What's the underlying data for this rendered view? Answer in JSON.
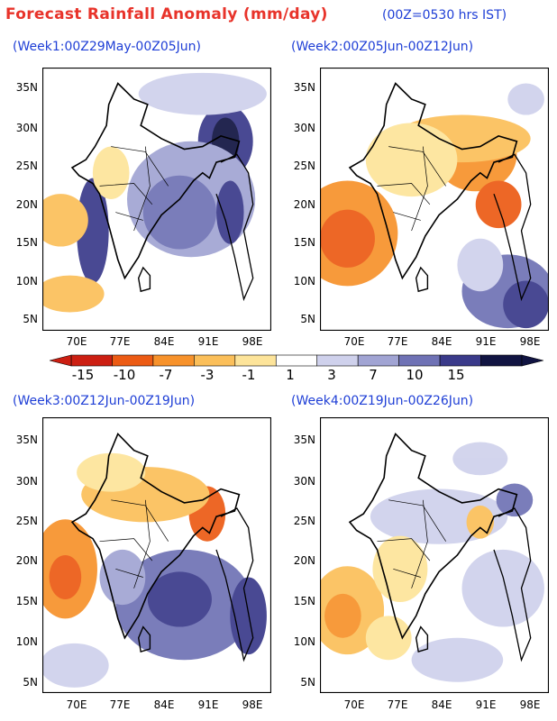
{
  "header": {
    "title": "Forecast Rainfall Anomaly (mm/day)",
    "note": "(00Z=0530 hrs IST)"
  },
  "panels": [
    {
      "title": "(Week1:00Z29May-00Z05Jun)",
      "pattern": "wet"
    },
    {
      "title": "(Week2:00Z05Jun-00Z12Jun)",
      "pattern": "dry"
    },
    {
      "title": "(Week3:00Z12Jun-00Z19Jun)",
      "pattern": "mixed"
    },
    {
      "title": "(Week4:00Z19Jun-00Z26Jun)",
      "pattern": "mild"
    }
  ],
  "axes": {
    "lat_labels": [
      "35N",
      "30N",
      "25N",
      "20N",
      "15N",
      "10N",
      "5N"
    ],
    "lon_labels": [
      "70E",
      "77E",
      "84E",
      "91E",
      "98E"
    ]
  },
  "colorbar": {
    "labels": [
      "-15",
      "-10",
      "-7",
      "-3",
      "-1",
      "1",
      "3",
      "7",
      "10",
      "15"
    ],
    "colors": [
      "#cc1f12",
      "#ec5b14",
      "#f7922b",
      "#fbbf5a",
      "#fde49a",
      "#ffffff",
      "#cfd1ec",
      "#a1a4d3",
      "#6f72b5",
      "#3a3a8a",
      "#111442"
    ]
  }
}
